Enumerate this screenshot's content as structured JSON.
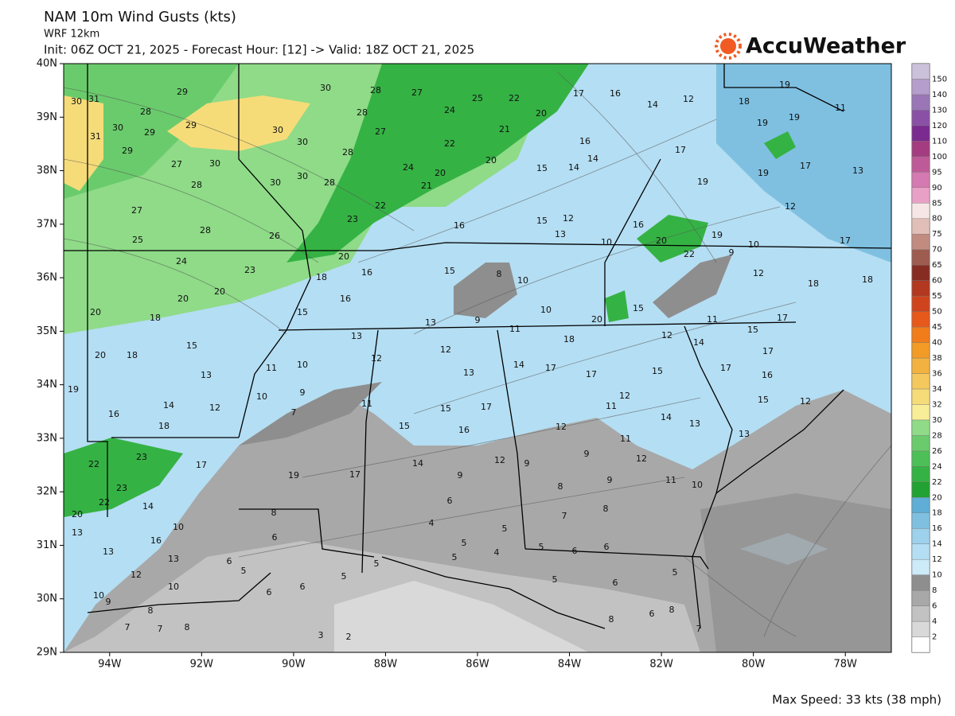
{
  "header": {
    "title": "NAM 10m Wind Gusts (kts)",
    "model": "WRF 12km",
    "run_info": "Init: 06Z OCT 21, 2025 - Forecast Hour: [12] -> Valid: 18Z OCT 21, 2025",
    "logo": "AccuWeather"
  },
  "map": {
    "xlim": [
      -95,
      -77
    ],
    "ylim": [
      29,
      40
    ],
    "xticks": [
      {
        "value": -94,
        "label": "94W"
      },
      {
        "value": -92,
        "label": "92W"
      },
      {
        "value": -90,
        "label": "90W"
      },
      {
        "value": -88,
        "label": "88W"
      },
      {
        "value": -86,
        "label": "86W"
      },
      {
        "value": -84,
        "label": "84W"
      },
      {
        "value": -82,
        "label": "82W"
      },
      {
        "value": -80,
        "label": "80W"
      },
      {
        "value": -78,
        "label": "78W"
      }
    ],
    "yticks": [
      {
        "value": 40,
        "label": "40N"
      },
      {
        "value": 39,
        "label": "39N"
      },
      {
        "value": 38,
        "label": "38N"
      },
      {
        "value": 37,
        "label": "37N"
      },
      {
        "value": 36,
        "label": "36N"
      },
      {
        "value": 35,
        "label": "35N"
      },
      {
        "value": 34,
        "label": "34N"
      },
      {
        "value": 33,
        "label": "33N"
      },
      {
        "value": 32,
        "label": "32N"
      },
      {
        "value": 31,
        "label": "31N"
      },
      {
        "value": 30,
        "label": "30N"
      },
      {
        "value": 29,
        "label": "29N"
      }
    ],
    "gust_labels": [
      30,
      31,
      28,
      29,
      30,
      28,
      27,
      25,
      22,
      30,
      29,
      29,
      30,
      30,
      28,
      27,
      24,
      21,
      20,
      17,
      16,
      14,
      12,
      18,
      19,
      11,
      31,
      29,
      27,
      30,
      30,
      28,
      22,
      20,
      16,
      17,
      19,
      19,
      27,
      28,
      30,
      28,
      24,
      20,
      21,
      15,
      14,
      14,
      19,
      19,
      17,
      13,
      25,
      28,
      26,
      23,
      22,
      16,
      15,
      12,
      13,
      10,
      16,
      20,
      19,
      10,
      12,
      17,
      24,
      23,
      20,
      18,
      16,
      15,
      8,
      10,
      22,
      9,
      12,
      18,
      18,
      20,
      20,
      15,
      16,
      13,
      9,
      11,
      10,
      20,
      15,
      11,
      15,
      17,
      20,
      18,
      15,
      13,
      12,
      18,
      12,
      14,
      17,
      20,
      18,
      13,
      11,
      10,
      12,
      13,
      14,
      17,
      17,
      15,
      17,
      16,
      19,
      14,
      12,
      10,
      9,
      11,
      15,
      17,
      12,
      11,
      12,
      14,
      13,
      15,
      12,
      16,
      18,
      7,
      15,
      16,
      13,
      23,
      22,
      17,
      19,
      17,
      14,
      12,
      9,
      9,
      11,
      9,
      12,
      11,
      10,
      23,
      22,
      14,
      8,
      6,
      8,
      9,
      20,
      10,
      6,
      4,
      5,
      7,
      8,
      13,
      16,
      13,
      5,
      4,
      5,
      6,
      6,
      12,
      13,
      5,
      6,
      5,
      5,
      10,
      5,
      5,
      5,
      10,
      9,
      8,
      6,
      6,
      6,
      8,
      7,
      7,
      8,
      3,
      2,
      8,
      6,
      7
    ]
  },
  "colorbar": {
    "levels": [
      2,
      4,
      6,
      8,
      10,
      12,
      14,
      16,
      18,
      20,
      22,
      24,
      26,
      28,
      30,
      32,
      34,
      36,
      38,
      40,
      45,
      50,
      55,
      60,
      65,
      70,
      75,
      80,
      85,
      90,
      95,
      100,
      110,
      120,
      130,
      140,
      150
    ],
    "colors": [
      "#ffffff",
      "#d9d9d9",
      "#c2c2c2",
      "#a8a8a8",
      "#8e8e8e",
      "#cdeaf8",
      "#b4def3",
      "#9dd1ec",
      "#7fc0e1",
      "#5eaed6",
      "#22a232",
      "#35b244",
      "#4cc056",
      "#6acb6c",
      "#8fdb88",
      "#f8ee98",
      "#f6dc79",
      "#f4c85c",
      "#f3b23f",
      "#f29b25",
      "#f07c1a",
      "#e6591a",
      "#cf441c",
      "#b2381f",
      "#872c22",
      "#9e5b50",
      "#c28b80",
      "#e2beb8",
      "#f7e6e6",
      "#e8a0c7",
      "#d479b1",
      "#bf5a99",
      "#a33c80",
      "#7b2a90",
      "#8a50a6",
      "#9b76b7",
      "#b59dcc",
      "#cbc1da"
    ]
  },
  "footer": {
    "max_speed": "Max Speed: 33 kts (38 mph)"
  }
}
